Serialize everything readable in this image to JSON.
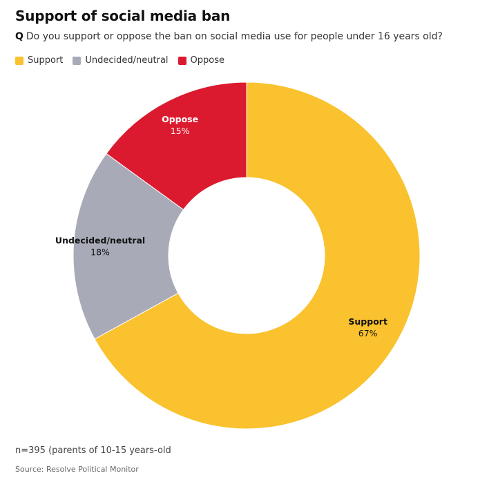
{
  "title": "Support of social media ban",
  "question": {
    "prefix": "Q",
    "text": "Do you support or oppose the ban on social media use for people under 16 years old?"
  },
  "legend": [
    {
      "label": "Support",
      "color": "#f9c22e"
    },
    {
      "label": "Undecided/neutral",
      "color": "#a8abb7"
    },
    {
      "label": "Oppose",
      "color": "#dc1a2f"
    }
  ],
  "chart_data": {
    "type": "pie",
    "variant": "donut",
    "title": "Support of social media ban",
    "categories": [
      "Support",
      "Undecided/neutral",
      "Oppose"
    ],
    "values": [
      67,
      18,
      15
    ],
    "value_labels": [
      "67%",
      "18%",
      "15%"
    ],
    "colors": [
      "#f9c22e",
      "#a8abb7",
      "#dc1a2f"
    ],
    "legend_position": "top-left"
  },
  "note": "n=395 (parents of 10-15 years-old",
  "source": "Source: Resolve Political Monitor"
}
